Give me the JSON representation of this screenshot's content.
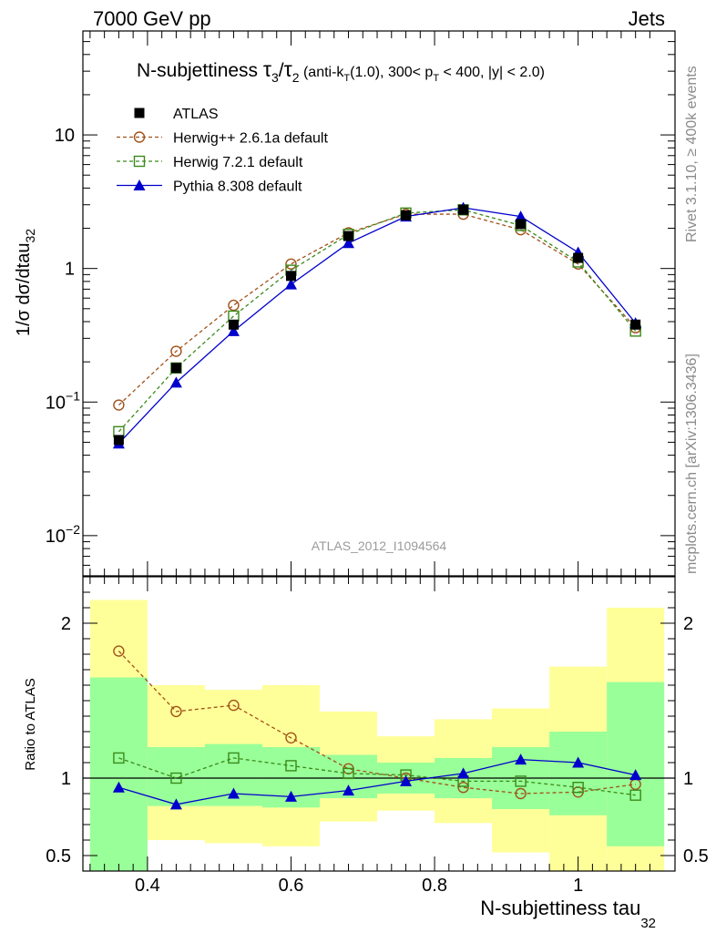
{
  "header": {
    "left": "7000 GeV pp",
    "right": "Jets"
  },
  "chart_data": [
    {
      "type": "line",
      "scale": "log",
      "title_main": "N-subjettiness ",
      "title_tau3": "τ",
      "title_sub3": "3",
      "title_slash": "/",
      "title_tau2": "τ",
      "title_sub2": "2",
      "title_detail_a": " (anti-k",
      "title_detail_T1": "T",
      "title_detail_b": "(1.0), 300< p",
      "title_detail_T2": "T",
      "title_detail_c": " < 400, |y| < 2.0)",
      "ylabel_main": "1/σ dσ/dtau",
      "ylabel_sub": "32",
      "ylim": [
        0.005,
        60
      ],
      "yticks": [
        {
          "value": 10,
          "label": "10",
          "exp": ""
        },
        {
          "value": 1,
          "label": "1",
          "exp": ""
        },
        {
          "value": 0.1,
          "label": "10",
          "exp": "−1"
        },
        {
          "value": 0.01,
          "label": "10",
          "exp": "−2"
        }
      ],
      "x": [
        0.36,
        0.44,
        0.52,
        0.6,
        0.68,
        0.76,
        0.84,
        0.92,
        1.0,
        1.08
      ],
      "series": [
        {
          "name": "ATLAS",
          "color": "#000000",
          "marker": "square-filled",
          "dashed": false,
          "values": [
            0.052,
            0.18,
            0.38,
            0.88,
            1.75,
            2.5,
            2.75,
            2.15,
            1.2,
            0.38
          ]
        },
        {
          "name": "Herwig++ 2.6.1a default",
          "color": "#a0521a",
          "marker": "circle-open",
          "dashed": true,
          "values": [
            0.095,
            0.24,
            0.53,
            1.08,
            1.85,
            2.55,
            2.55,
            1.95,
            1.08,
            0.36
          ]
        },
        {
          "name": "Herwig 7.2.1 default",
          "color": "#3a8a1a",
          "marker": "square-open",
          "dashed": true,
          "values": [
            0.06,
            0.18,
            0.44,
            0.97,
            1.8,
            2.6,
            2.75,
            2.1,
            1.12,
            0.34
          ]
        },
        {
          "name": "Pythia 8.308 default",
          "color": "#0000cc",
          "marker": "triangle-filled",
          "dashed": false,
          "values": [
            0.049,
            0.14,
            0.34,
            0.76,
            1.55,
            2.45,
            2.85,
            2.45,
            1.32,
            0.39
          ]
        }
      ],
      "watermark": "ATLAS_2012_I1094564"
    },
    {
      "type": "line",
      "ylabel": "Ratio to ATLAS",
      "xlabel_main": "N-subjettiness tau",
      "xlabel_sub": "32",
      "ylim": [
        0.4,
        2.3
      ],
      "xlim": [
        0.31,
        1.135
      ],
      "xticks": [
        {
          "value": 0.4,
          "label": "0.4"
        },
        {
          "value": 0.6,
          "label": "0.6"
        },
        {
          "value": 0.8,
          "label": "0.8"
        },
        {
          "value": 1.0,
          "label": "1"
        }
      ],
      "yticks": [
        {
          "value": 2,
          "label": "2"
        },
        {
          "value": 1,
          "label": "1"
        },
        {
          "value": 0.5,
          "label": "0.5"
        }
      ],
      "bins": [
        {
          "lo": 0.32,
          "hi": 0.4,
          "stat_lo": 0.3,
          "stat_hi": 1.65,
          "tot_lo": 0.3,
          "tot_hi": 2.15
        },
        {
          "lo": 0.4,
          "hi": 0.48,
          "stat_lo": 0.82,
          "stat_hi": 1.2,
          "tot_lo": 0.6,
          "tot_hi": 1.6
        },
        {
          "lo": 0.48,
          "hi": 0.56,
          "stat_lo": 0.82,
          "stat_hi": 1.22,
          "tot_lo": 0.58,
          "tot_hi": 1.57
        },
        {
          "lo": 0.56,
          "hi": 0.64,
          "stat_lo": 0.81,
          "stat_hi": 1.2,
          "tot_lo": 0.56,
          "tot_hi": 1.6
        },
        {
          "lo": 0.64,
          "hi": 0.72,
          "stat_lo": 0.87,
          "stat_hi": 1.15,
          "tot_lo": 0.72,
          "tot_hi": 1.43
        },
        {
          "lo": 0.72,
          "hi": 0.8,
          "stat_lo": 0.9,
          "stat_hi": 1.1,
          "tot_lo": 0.79,
          "tot_hi": 1.27
        },
        {
          "lo": 0.8,
          "hi": 0.88,
          "stat_lo": 0.87,
          "stat_hi": 1.13,
          "tot_lo": 0.71,
          "tot_hi": 1.38
        },
        {
          "lo": 0.88,
          "hi": 0.96,
          "stat_lo": 0.8,
          "stat_hi": 1.2,
          "tot_lo": 0.52,
          "tot_hi": 1.45
        },
        {
          "lo": 0.96,
          "hi": 1.04,
          "stat_lo": 0.76,
          "stat_hi": 1.3,
          "tot_lo": 0.4,
          "tot_hi": 1.72
        },
        {
          "lo": 1.04,
          "hi": 1.12,
          "stat_lo": 0.56,
          "stat_hi": 1.62,
          "tot_lo": 0.3,
          "tot_hi": 2.1
        }
      ],
      "series": [
        {
          "name": "Herwig++ 2.6.1a default",
          "values": [
            1.82,
            1.43,
            1.47,
            1.26,
            1.06,
            1.0,
            0.94,
            0.9,
            0.91,
            0.96
          ]
        },
        {
          "name": "Herwig 7.2.1 default",
          "values": [
            1.13,
            1.0,
            1.13,
            1.08,
            1.03,
            1.02,
            0.98,
            0.98,
            0.94,
            0.89
          ]
        },
        {
          "name": "Pythia 8.308 default",
          "values": [
            0.94,
            0.83,
            0.9,
            0.88,
            0.92,
            0.98,
            1.03,
            1.12,
            1.1,
            1.02
          ]
        }
      ]
    }
  ],
  "sidebar": {
    "rivet": "Rivet 3.1.10, ≥ 400k events",
    "mcplots": "mcplots.cern.ch [arXiv:1306.3436]"
  },
  "colors": {
    "stat_band": "#99ff99",
    "total_band": "#ffff99"
  }
}
